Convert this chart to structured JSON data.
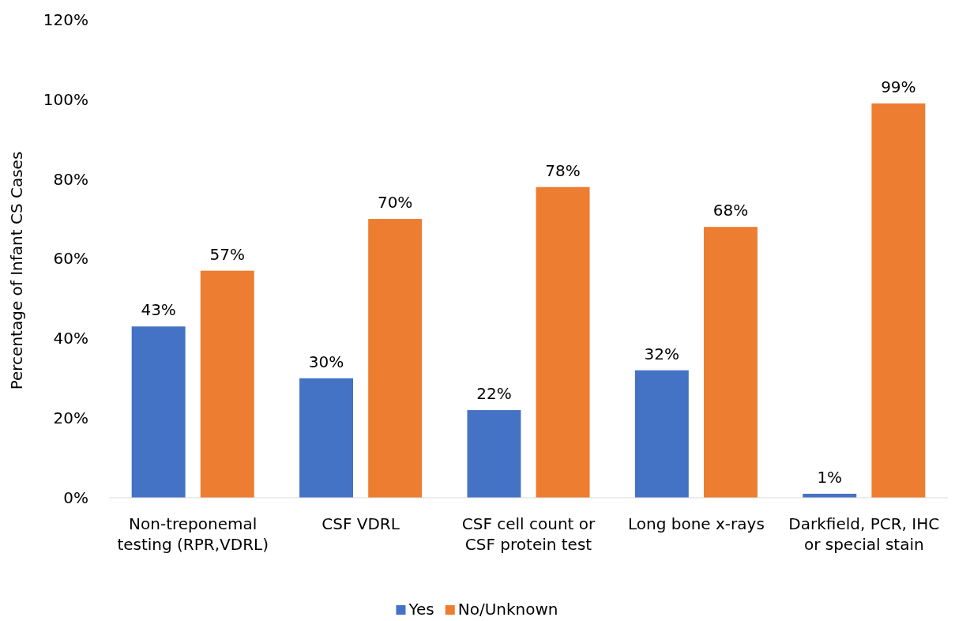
{
  "chart_data": {
    "type": "bar",
    "ylabel": "Percentage of Infant CS Cases",
    "categories": [
      "Non-treponemal testing (RPR,VDRL)",
      "CSF VDRL",
      "CSF cell count or CSF protein test",
      "Long bone x-rays",
      "Darkfield, PCR, IHC or special stain"
    ],
    "series": [
      {
        "name": "Yes",
        "color": "#4472c4",
        "values": [
          43,
          30,
          22,
          32,
          1
        ]
      },
      {
        "name": "No/Unknown",
        "color": "#ed7d31",
        "values": [
          57,
          70,
          78,
          68,
          99
        ]
      }
    ],
    "ylim": [
      0,
      120
    ],
    "yticks": [
      {
        "value": 0,
        "label": "0%"
      },
      {
        "value": 20,
        "label": "20%"
      },
      {
        "value": 40,
        "label": "40%"
      },
      {
        "value": 60,
        "label": "60%"
      },
      {
        "value": 80,
        "label": "80%"
      },
      {
        "value": 100,
        "label": "100%"
      },
      {
        "value": 120,
        "label": "120%"
      }
    ],
    "value_labels": [
      [
        "43%",
        "30%",
        "22%",
        "32%",
        "1%"
      ],
      [
        "57%",
        "70%",
        "78%",
        "68%",
        "99%"
      ]
    ],
    "grid": false,
    "legend": "bottom"
  }
}
